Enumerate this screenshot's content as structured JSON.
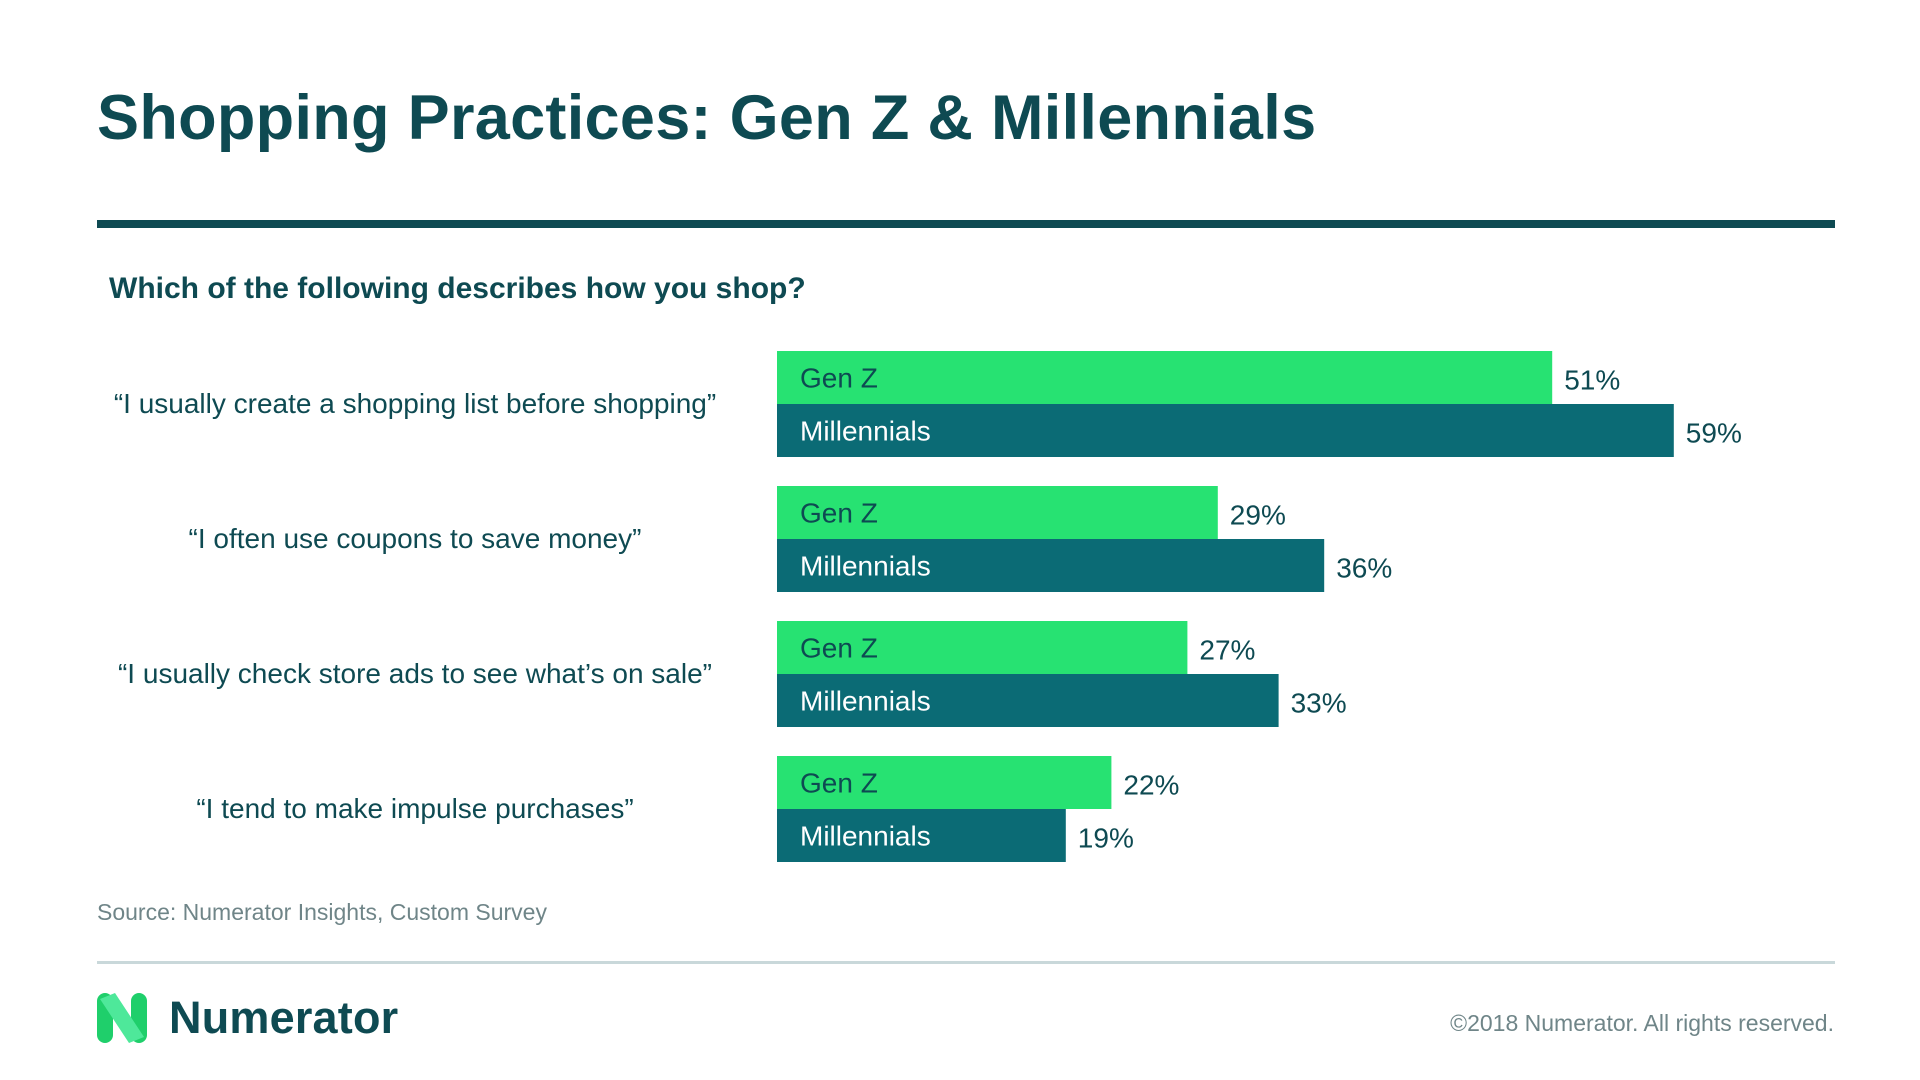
{
  "page": {
    "title": "Shopping Practices: Gen Z & Millennials",
    "question": "Which of the following describes how you shop?",
    "source": "Source: Numerator Insights, Custom Survey",
    "brand": "Numerator",
    "copyright": "©2018 Numerator. All rights reserved."
  },
  "colors": {
    "title": "#0e4a52",
    "genz": "#27e272",
    "millennials": "#0b6b75",
    "bar_text_genz": "#0e4a52",
    "bar_text_millennials": "#ffffff",
    "logo_light": "#4ee89a",
    "logo_dark": "#1fcf6b"
  },
  "chart_data": {
    "type": "bar",
    "orientation": "horizontal",
    "categories": [
      "“I usually create a shopping list before shopping”",
      "“I often use coupons to save money”",
      "“I usually check store ads to see what’s on sale”",
      "“I tend to make impulse purchases”"
    ],
    "series": [
      {
        "name": "Gen Z",
        "values": [
          51,
          29,
          27,
          22
        ],
        "labels": [
          "51%",
          "29%",
          "27%",
          "22%"
        ]
      },
      {
        "name": "Millennials",
        "values": [
          59,
          36,
          33,
          19
        ],
        "labels": [
          "59%",
          "36%",
          "33%",
          "19%"
        ]
      }
    ],
    "unit": "%",
    "xlim": [
      0,
      100
    ],
    "grid": false,
    "legend": "none (series names shown inside bars)"
  }
}
